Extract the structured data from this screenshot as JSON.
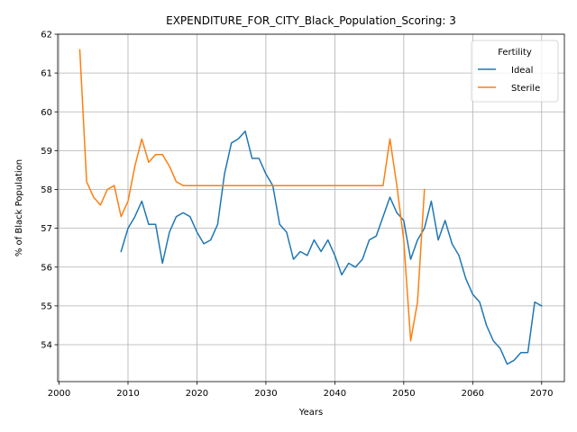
{
  "chart_data": {
    "type": "line",
    "title": "EXPENDITURE_FOR_CITY_Black_Population_Scoring: 3",
    "xlabel": "Years",
    "ylabel": "% of Black Population",
    "xlim": [
      1999.8,
      2073.3
    ],
    "ylim": [
      53.05,
      62.0
    ],
    "xticks": [
      2000,
      2010,
      2020,
      2030,
      2040,
      2050,
      2060,
      2070
    ],
    "yticks": [
      54,
      55,
      56,
      57,
      58,
      59,
      60,
      61,
      62
    ],
    "grid": true,
    "legend": {
      "title": "Fertility",
      "placement": "top-right"
    },
    "colors": {
      "Ideal": "#1f77b4",
      "Sterile": "#ff7f0e"
    },
    "series": [
      {
        "name": "Ideal",
        "x": [
          2009,
          2010,
          2011,
          2012,
          2013,
          2014,
          2015,
          2016,
          2017,
          2018,
          2019,
          2020,
          2021,
          2022,
          2023,
          2024,
          2025,
          2026,
          2027,
          2028,
          2029,
          2030,
          2031,
          2032,
          2033,
          2034,
          2035,
          2036,
          2037,
          2038,
          2039,
          2040,
          2041,
          2042,
          2043,
          2044,
          2045,
          2046,
          2047,
          2048,
          2049,
          2050,
          2051,
          2052,
          2053,
          2054,
          2055,
          2056,
          2057,
          2058,
          2059,
          2060,
          2061,
          2062,
          2063,
          2064,
          2065,
          2066,
          2067,
          2068,
          2069,
          2070
        ],
        "y": [
          56.4,
          57.0,
          57.3,
          57.7,
          57.1,
          57.1,
          56.1,
          56.9,
          57.3,
          57.4,
          57.3,
          56.9,
          56.6,
          56.7,
          57.1,
          58.4,
          59.2,
          59.3,
          59.5,
          58.8,
          58.8,
          58.4,
          58.1,
          57.1,
          56.9,
          56.2,
          56.4,
          56.3,
          56.7,
          56.4,
          56.7,
          56.3,
          55.8,
          56.1,
          56.0,
          56.2,
          56.7,
          56.8,
          57.3,
          57.8,
          57.4,
          57.2,
          56.2,
          56.7,
          57.0,
          57.7,
          56.7,
          57.2,
          56.6,
          56.3,
          55.7,
          55.3,
          55.1,
          54.5,
          54.1,
          53.9,
          53.5,
          53.6,
          53.8,
          53.8,
          55.1,
          55.0
        ]
      },
      {
        "name": "Sterile",
        "x": [
          2003,
          2004,
          2005,
          2006,
          2007,
          2008,
          2009,
          2010,
          2011,
          2012,
          2013,
          2014,
          2015,
          2016,
          2017,
          2018,
          2019,
          2020,
          2021,
          2022,
          2023,
          2024,
          2025,
          2026,
          2027,
          2028,
          2029,
          2030,
          2031,
          2032,
          2033,
          2034,
          2035,
          2036,
          2037,
          2038,
          2039,
          2040,
          2041,
          2042,
          2043,
          2044,
          2045,
          2046,
          2047,
          2048,
          2049,
          2050,
          2051,
          2052,
          2053
        ],
        "y": [
          61.6,
          58.2,
          57.8,
          57.6,
          58.0,
          58.1,
          57.3,
          57.7,
          58.6,
          59.3,
          58.7,
          58.9,
          58.9,
          58.6,
          58.2,
          58.1,
          58.1,
          58.1,
          58.1,
          58.1,
          58.1,
          58.1,
          58.1,
          58.1,
          58.1,
          58.1,
          58.1,
          58.1,
          58.1,
          58.1,
          58.1,
          58.1,
          58.1,
          58.1,
          58.1,
          58.1,
          58.1,
          58.1,
          58.1,
          58.1,
          58.1,
          58.1,
          58.1,
          58.1,
          58.1,
          59.3,
          58.1,
          56.7,
          54.1,
          55.1,
          58.0
        ]
      }
    ]
  }
}
